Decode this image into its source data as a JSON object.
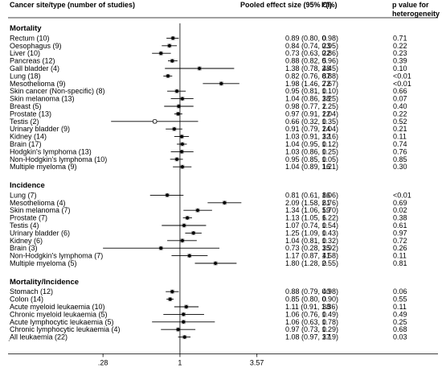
{
  "chart_data": {
    "type": "forest",
    "headers": {
      "label": "Cancer site/type (number of studies)",
      "effect": "Pooled effect size (95% CI)",
      "i2": "I²(%)",
      "p": "p value for heterogeneity"
    },
    "x_scale": "log",
    "xlim": [
      0.22,
      5.2
    ],
    "xticks": [
      {
        "value": 0.28,
        "label": ".28"
      },
      {
        "value": 1,
        "label": "1"
      },
      {
        "value": 3.57,
        "label": "3.57"
      }
    ],
    "reference_line": 1,
    "footnote": ".",
    "sections": [
      {
        "title": "Mortality",
        "rows": [
          {
            "label": "Rectum (10)",
            "est": 0.89,
            "lo": 0.8,
            "hi": 0.98,
            "ci": "0.89 (0.80, 0.98)",
            "i2": "0",
            "p": "0.71"
          },
          {
            "label": "Oesophagus (9)",
            "est": 0.84,
            "lo": 0.74,
            "hi": 0.95,
            "ci": "0.84 (0.74, 0.95)",
            "i2": "23",
            "p": "0.22"
          },
          {
            "label": "Liver (10)",
            "est": 0.73,
            "lo": 0.63,
            "hi": 0.86,
            "ci": "0.73 (0.63, 0.86)",
            "i2": "22",
            "p": "0.23"
          },
          {
            "label": "Pancreas (12)",
            "est": 0.88,
            "lo": 0.82,
            "hi": 0.96,
            "ci": "0.88 (0.82, 0.96)",
            "i2": "5",
            "p": "0.39"
          },
          {
            "label": "Gall bladder (4)",
            "est": 1.38,
            "lo": 0.78,
            "hi": 2.45,
            "ci": "1.38 (0.78, 2.45)",
            "i2": "48",
            "p": "0.10"
          },
          {
            "label": "Lung (18)",
            "est": 0.82,
            "lo": 0.76,
            "hi": 0.88,
            "ci": "0.82 (0.76, 0.88)",
            "i2": "87",
            "p": "<0.01"
          },
          {
            "label": "Mesothelioma (9)",
            "est": 1.98,
            "lo": 1.46,
            "hi": 2.67,
            "ci": "1.98 (1.46, 2.67)",
            "i2": "72",
            "p": "<0.01"
          },
          {
            "label": "Skin cancer (Non-specific) (8)",
            "est": 0.95,
            "lo": 0.81,
            "hi": 1.1,
            "ci": "0.95 (0.81, 1.10)",
            "i2": "0",
            "p": "0.66"
          },
          {
            "label": "Skin melanoma (13)",
            "est": 1.04,
            "lo": 0.86,
            "hi": 1.25,
            "ci": "1.04 (0.86, 1.25)",
            "i2": "38",
            "p": "0.07"
          },
          {
            "label": "Breast (5)",
            "est": 0.98,
            "lo": 0.77,
            "hi": 1.25,
            "ci": "0.98 (0.77, 1.25)",
            "i2": "2",
            "p": "0.40"
          },
          {
            "label": "Prostate (13)",
            "est": 0.97,
            "lo": 0.91,
            "hi": 1.04,
            "ci": "0.97 (0.91, 1.04)",
            "i2": "22",
            "p": "0.22"
          },
          {
            "label": "Testis (2)",
            "est": 0.66,
            "lo": 0.32,
            "hi": 1.35,
            "ci": "0.66 (0.32, 1.35)",
            "i2": "0",
            "p": "0.52",
            "hollow": true
          },
          {
            "label": "Urinary bladder (9)",
            "est": 0.91,
            "lo": 0.79,
            "hi": 1.04,
            "ci": "0.91 (0.79, 1.04)",
            "i2": "24",
            "p": "0.21"
          },
          {
            "label": "Kidney (14)",
            "est": 1.03,
            "lo": 0.91,
            "hi": 1.16,
            "ci": "1.03 (0.91, 1.16)",
            "i2": "32",
            "p": "0.11"
          },
          {
            "label": "Brain (17)",
            "est": 1.04,
            "lo": 0.95,
            "hi": 1.12,
            "ci": "1.04 (0.95, 1.12)",
            "i2": "0",
            "p": "0.74"
          },
          {
            "label": "Hodgkin's lymphoma (13)",
            "est": 1.03,
            "lo": 0.86,
            "hi": 1.25,
            "ci": "1.03 (0.86, 1.25)",
            "i2": "0",
            "p": "0.76"
          },
          {
            "label": "Non-Hodgkin's lymphoma (10)",
            "est": 0.95,
            "lo": 0.85,
            "hi": 1.05,
            "ci": "0.95 (0.85, 1.05)",
            "i2": "0",
            "p": "0.85"
          },
          {
            "label": "Multiple myeloma (9)",
            "est": 1.04,
            "lo": 0.89,
            "hi": 1.21,
            "ci": "1.04 (0.89, 1.21)",
            "i2": "16",
            "p": "0.30"
          }
        ]
      },
      {
        "title": "Incidence",
        "rows": [
          {
            "label": "Lung (7)",
            "est": 0.81,
            "lo": 0.61,
            "hi": 1.06,
            "ci": "0.81 (0.61, 1.06)",
            "i2": "86",
            "p": "<0.01"
          },
          {
            "label": "Mesothelioma (4)",
            "est": 2.09,
            "lo": 1.58,
            "hi": 2.76,
            "ci": "2.09 (1.58, 2.76)",
            "i2": "61",
            "p": "0.69"
          },
          {
            "label": "Skin melanoma (7)",
            "est": 1.34,
            "lo": 1.06,
            "hi": 1.7,
            "ci": "1.34 (1.06, 1.70)",
            "i2": "59",
            "p": "0.02"
          },
          {
            "label": "Prostate (7)",
            "est": 1.13,
            "lo": 1.05,
            "hi": 1.22,
            "ci": "1.13 (1.05, 1.22)",
            "i2": "6",
            "p": "0.38"
          },
          {
            "label": "Testis (4)",
            "est": 1.07,
            "lo": 0.74,
            "hi": 1.54,
            "ci": "1.07 (0.74, 1.54)",
            "i2": "0",
            "p": "0.61"
          },
          {
            "label": "Urinary bladder (6)",
            "est": 1.25,
            "lo": 1.09,
            "hi": 1.43,
            "ci": "1.25 (1.09, 1.43)",
            "i2": "0",
            "p": "0.97"
          },
          {
            "label": "Kidney (6)",
            "est": 1.04,
            "lo": 0.81,
            "hi": 1.32,
            "ci": "1.04 (0.81, 1.32)",
            "i2": "0",
            "p": "0.72"
          },
          {
            "label": "Brain (3)",
            "est": 0.73,
            "lo": 0.28,
            "hi": 1.92,
            "ci": "0.73 (0.28, 1.92)",
            "i2": "35",
            "p": "0.26"
          },
          {
            "label": "Non-Hodgkin's lymphoma (7)",
            "est": 1.17,
            "lo": 0.87,
            "hi": 1.58,
            "ci": "1.17 (0.87, 1.58)",
            "i2": "41",
            "p": "0.11"
          },
          {
            "label": "Multiple myeloma (5)",
            "est": 1.8,
            "lo": 1.28,
            "hi": 2.55,
            "ci": "1.80 (1.28, 2.55)",
            "i2": "0",
            "p": "0.81"
          }
        ]
      },
      {
        "title": "Mortality/Incidence",
        "rows": [
          {
            "label": "Stomach (12)",
            "est": 0.88,
            "lo": 0.79,
            "hi": 0.98,
            "ci": "0.88 (0.79, 0.98)",
            "i2": "40",
            "p": "0.06"
          },
          {
            "label": "Colon (14)",
            "est": 0.85,
            "lo": 0.8,
            "hi": 0.9,
            "ci": "0.85 (0.80, 0.90)",
            "i2": "0",
            "p": "0.55"
          },
          {
            "label": "Acute myeloid leukaemia (10)",
            "est": 1.11,
            "lo": 0.91,
            "hi": 1.36,
            "ci": "1.11 (0.91, 1.36)",
            "i2": "38",
            "p": "0.11"
          },
          {
            "label": "Chronic myeloid leukaemia (5)",
            "est": 1.06,
            "lo": 0.76,
            "hi": 1.49,
            "ci": "1.06 (0.76, 1.49)",
            "i2": "0",
            "p": "0.49"
          },
          {
            "label": "Acute lymphocytic leukaemia (5)",
            "est": 1.06,
            "lo": 0.63,
            "hi": 1.78,
            "ci": "1.06 (0.63, 1.78)",
            "i2": "0",
            "p": "0.25"
          },
          {
            "label": "Chronic lymphocytic leukaemia (4)",
            "est": 0.97,
            "lo": 0.73,
            "hi": 1.29,
            "ci": "0.97 (0.73, 1.29)",
            "i2": "0",
            "p": "0.68"
          },
          {
            "label": "All leukaemia (22)",
            "est": 1.08,
            "lo": 0.97,
            "hi": 1.19,
            "ci": "1.08 (0.97, 1.19)",
            "i2": "37",
            "p": "0.03"
          }
        ]
      }
    ]
  }
}
